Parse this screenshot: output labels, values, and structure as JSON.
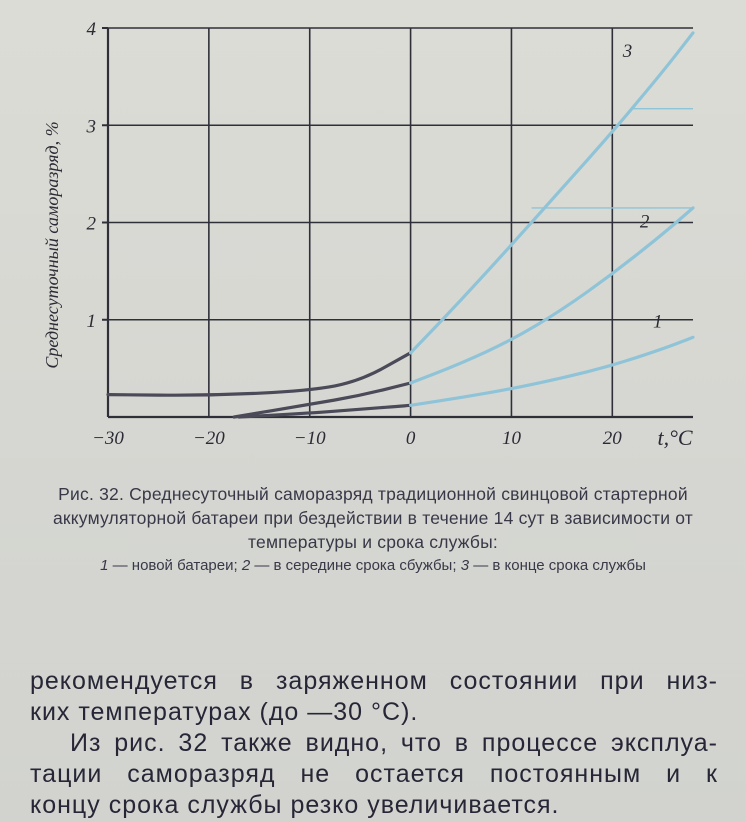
{
  "chart_data": {
    "type": "line",
    "ylabel": "Среднесуточный саморазряд, %",
    "xlabel": "t,°C",
    "xlim": [
      -30,
      28
    ],
    "ylim": [
      0,
      4
    ],
    "x_ticks": [
      "−30",
      "−20",
      "−10",
      "0",
      "10",
      "20"
    ],
    "y_ticks": [
      "1",
      "2",
      "3",
      "4"
    ],
    "grid": true,
    "series": [
      {
        "name": "1",
        "x": [
          -17,
          -10,
          -5,
          0,
          5,
          10,
          15,
          20,
          25,
          28
        ],
        "y": [
          0,
          0.04,
          0.08,
          0.12,
          0.2,
          0.29,
          0.4,
          0.53,
          0.7,
          0.82
        ]
      },
      {
        "name": "2",
        "x": [
          -17.5,
          -10,
          -5,
          0,
          5,
          10,
          15,
          20,
          25,
          28
        ],
        "y": [
          0,
          0.13,
          0.22,
          0.35,
          0.55,
          0.79,
          1.1,
          1.47,
          1.88,
          2.15
        ]
      },
      {
        "name": "3",
        "x": [
          -30,
          -20,
          -10,
          -5,
          0,
          5,
          10,
          15,
          20,
          25,
          28
        ],
        "y": [
          0.23,
          0.22,
          0.27,
          0.37,
          0.66,
          1.2,
          1.77,
          2.35,
          2.93,
          3.55,
          3.95
        ]
      }
    ]
  },
  "caption": {
    "main": "Рис. 32. Среднесуточный саморазряд традиционной свинцовой стартерной аккумуляторной батареи при бездействии в течение 14 сут в зависимости от температуры и срока службы:",
    "legend_1_num": "1",
    "legend_1_text": " — новой батареи; ",
    "legend_2_num": "2",
    "legend_2_text": " — в середине срока сбужбы; ",
    "legend_3_num": "3",
    "legend_3_text": " — в конце срока службы"
  },
  "body": {
    "line1": "рекомендуется в заряженном состоянии при низ-",
    "line2": "ких температурах (до  —30 °C).",
    "line3": "Из рис. 32 также видно, что в процессе эксплуа-",
    "line4": "тации саморазряд не остается постоянным и к",
    "line5": "концу срока службы резко увеличивается."
  },
  "colors": {
    "ink": "#2b2b35",
    "grid": "#2f2f3a",
    "blue_line": "#8fc4d8",
    "page": "#d8d9d4"
  }
}
